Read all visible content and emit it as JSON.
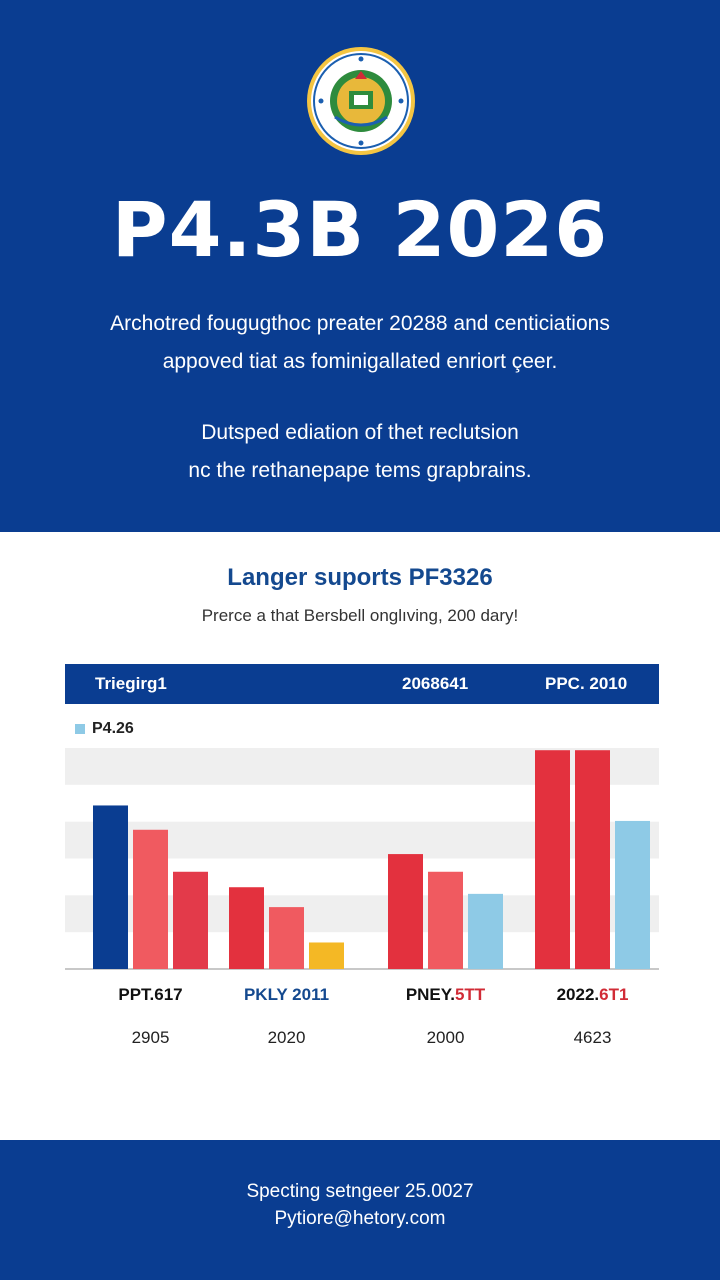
{
  "hero": {
    "seal_name": "official-seal",
    "headline": "P4.3B 2026",
    "paragraph1": [
      "Archotred fougugthoc preater 20288 and centiciations",
      "appoved tiat as fominigallated enriort çeer."
    ],
    "paragraph2": [
      "Dutsped ediation of thet reclutsion",
      "nc the rethanepape tems grapbrains."
    ]
  },
  "chart_data": {
    "type": "bar",
    "title": "Langer suports PF3326",
    "subtitle": "Prerce a that Bersbell onglıving, 200 dary!",
    "header_row": [
      "Triegirg1",
      "2068641",
      "PPC. 2010"
    ],
    "legend": [
      {
        "label": "P4.26",
        "color": "#8ecae6"
      }
    ],
    "groups": [
      "PPT.617",
      "PKLY 2011",
      "PNEY.5TT",
      "2022.6T1"
    ],
    "group_values": [
      "2905",
      "2020",
      "2000",
      "4623"
    ],
    "ylim": [
      0,
      100
    ],
    "grid": "banded",
    "series_bars": [
      [
        {
          "value": 74,
          "color": "#0a3d91"
        },
        {
          "value": 63,
          "color": "#f05a60"
        },
        {
          "value": 44,
          "color": "#e33a4a"
        }
      ],
      [
        {
          "value": 37,
          "color": "#e3313e"
        },
        {
          "value": 28,
          "color": "#f05a60"
        },
        {
          "value": 12,
          "color": "#f4b825"
        }
      ],
      [
        {
          "value": 52,
          "color": "#e3313e"
        },
        {
          "value": 44,
          "color": "#f05a60"
        },
        {
          "value": 34,
          "color": "#8ecae6"
        }
      ],
      [
        {
          "value": 99,
          "color": "#e3313e"
        },
        {
          "value": 99,
          "color": "#e3313e"
        },
        {
          "value": 67,
          "color": "#8ecae6"
        }
      ]
    ],
    "label_colors": [
      "#111111",
      "#14498f",
      "#111111",
      "#111111"
    ],
    "label_accent": {
      "2": {
        "text": "5TT",
        "color": "#d12b36"
      },
      "3": {
        "text": "6T1",
        "color": "#d12b36"
      }
    }
  },
  "footer": {
    "line1": "Specting setngeer 25.0027",
    "line2": "Pytiore@hetory.com"
  }
}
